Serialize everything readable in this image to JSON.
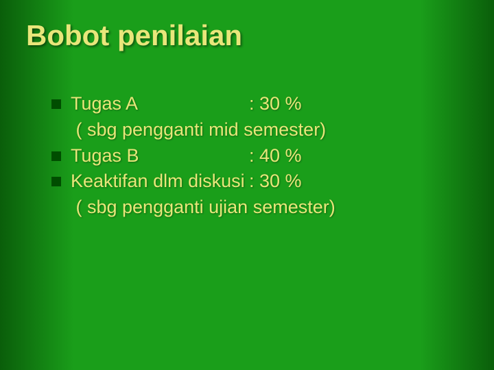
{
  "title": {
    "text": "Bobot penilaian",
    "color": "#e8e67a",
    "fontsize": 42,
    "font_family": "Arial",
    "font_weight": "bold"
  },
  "body": {
    "text_color": "#e8e67a",
    "fontsize": 27,
    "bullet_color": "#004d00",
    "line_height": 1.25,
    "items": [
      {
        "type": "item",
        "label": "Tugas A",
        "value": ": 30 %"
      },
      {
        "type": "note",
        "text": " ( sbg pengganti mid semester)"
      },
      {
        "type": "item",
        "label": "Tugas B",
        "value": ": 40 %"
      },
      {
        "type": "item",
        "label": "Keaktifan dlm diskusi",
        "value": ": 30 %"
      },
      {
        "type": "note",
        "text": " ( sbg pengganti ujian semester)"
      }
    ]
  },
  "background": {
    "center_color": "#1a9e1a",
    "edge_color": "#0a5e0a"
  }
}
